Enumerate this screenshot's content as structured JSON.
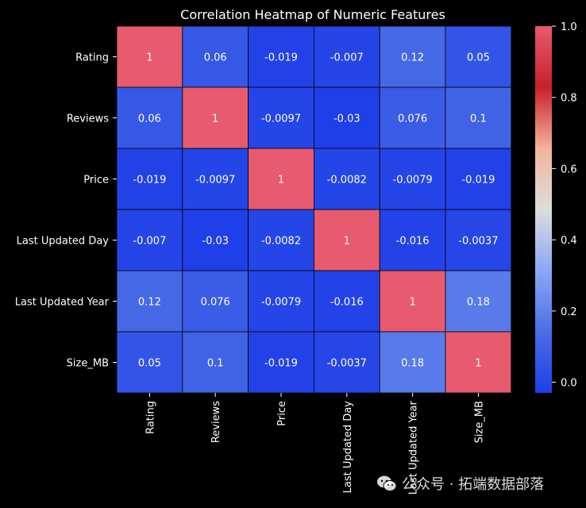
{
  "chart_data": {
    "type": "heatmap",
    "title": "Correlation Heatmap of Numeric Features",
    "row_labels": [
      "Rating",
      "Reviews",
      "Price",
      "Last Updated Day",
      "Last Updated Year",
      "Size_MB"
    ],
    "col_labels": [
      "Rating",
      "Reviews",
      "Price",
      "Last Updated Day",
      "Last Updated Year",
      "Size_MB"
    ],
    "values": [
      [
        1,
        0.06,
        -0.019,
        -0.007,
        0.12,
        0.05
      ],
      [
        0.06,
        1,
        -0.0097,
        -0.03,
        0.076,
        0.1
      ],
      [
        -0.019,
        -0.0097,
        1,
        -0.0082,
        -0.0079,
        -0.019
      ],
      [
        -0.007,
        -0.03,
        -0.0082,
        1,
        -0.016,
        -0.0037
      ],
      [
        0.12,
        0.076,
        -0.0079,
        -0.016,
        1,
        0.18
      ],
      [
        0.05,
        0.1,
        -0.019,
        -0.0037,
        0.18,
        1
      ]
    ],
    "value_labels": [
      [
        "1",
        "0.06",
        "-0.019",
        "-0.007",
        "0.12",
        "0.05"
      ],
      [
        "0.06",
        "1",
        "-0.0097",
        "-0.03",
        "0.076",
        "0.1"
      ],
      [
        "-0.019",
        "-0.0097",
        "1",
        "-0.0082",
        "-0.0079",
        "-0.019"
      ],
      [
        "-0.007",
        "-0.03",
        "-0.0082",
        "1",
        "-0.016",
        "-0.0037"
      ],
      [
        "0.12",
        "0.076",
        "-0.0079",
        "-0.016",
        "1",
        "0.18"
      ],
      [
        "0.05",
        "0.1",
        "-0.019",
        "-0.0037",
        "0.18",
        "1"
      ]
    ],
    "colorbar": {
      "range": [
        -0.03,
        1
      ],
      "ticks": [
        0.0,
        0.2,
        0.4,
        0.6,
        0.8,
        1.0
      ],
      "tick_labels": [
        "0.0",
        "0.2",
        "0.4",
        "0.6",
        "0.8",
        "1.0"
      ],
      "colors": [
        "#1f3fe8",
        "#4a6ee6",
        "#8aa8f5",
        "#dddddd",
        "#f2b49a",
        "#c8202b",
        "#e85a6e"
      ]
    },
    "cell_border_color": "#000000",
    "background_color": "#000000"
  },
  "watermark": {
    "icon": "wechat-icon",
    "text": "公众号 · 拓端数据部落"
  }
}
